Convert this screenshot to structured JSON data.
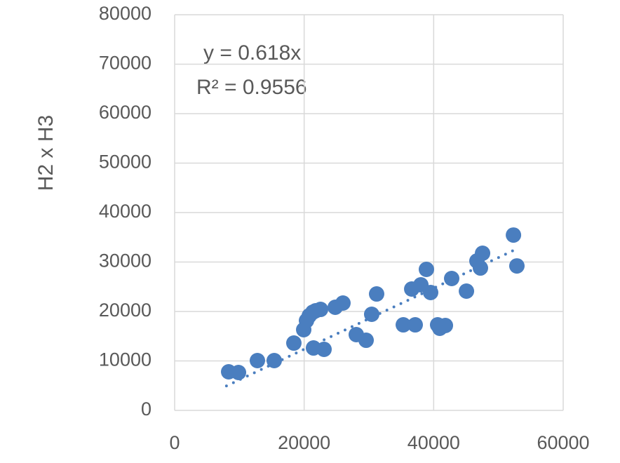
{
  "chart_data": {
    "type": "scatter",
    "y_label": "H2 x H3",
    "series": [
      {
        "color": "#4a7ebf",
        "x": [
          8340,
          9860,
          12780,
          15380,
          18410,
          19930,
          20360,
          20790,
          21340,
          21770,
          22530,
          21440,
          23070,
          24800,
          25990,
          28050,
          29570,
          30430,
          31190,
          35310,
          37150,
          36610,
          38020,
          38880,
          39530,
          40610,
          40940,
          41810,
          42780,
          45060,
          46680,
          47550,
          47220,
          52320,
          52850
        ],
        "values": [
          7800,
          7660,
          10070,
          10070,
          13610,
          16310,
          18150,
          19140,
          19850,
          20140,
          20420,
          12620,
          12340,
          20850,
          21700,
          15320,
          14180,
          19430,
          23540,
          17300,
          17300,
          24540,
          25390,
          28510,
          23830,
          17300,
          16600,
          17160,
          26670,
          24110,
          30210,
          31770,
          28790,
          35450,
          29210
        ]
      }
    ],
    "trendline": {
      "slope": 0.618,
      "x": [
        8000,
        53000
      ],
      "equation": "y = 0.618x",
      "r_squared": "R² = 0.9556"
    },
    "xlim": [
      0,
      60000
    ],
    "xticks": [
      0,
      20000,
      40000,
      60000
    ],
    "ylim": [
      0,
      80000
    ],
    "yticks": [
      0,
      10000,
      20000,
      30000,
      40000,
      50000,
      60000,
      70000,
      80000
    ],
    "grid": true
  }
}
